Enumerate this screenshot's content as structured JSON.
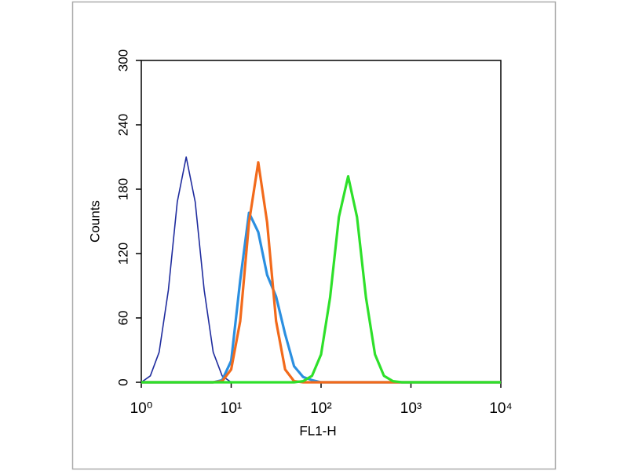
{
  "chart_data": {
    "type": "line",
    "xlabel": "FL1-H",
    "ylabel": "Counts",
    "xscale": "log",
    "x": [
      1,
      1.26,
      1.58,
      2,
      2.51,
      3.16,
      3.98,
      5.01,
      6.31,
      7.94,
      10,
      12.6,
      15.8,
      20,
      25.1,
      31.6,
      39.8,
      50.1,
      63.1,
      79.4,
      100,
      126,
      158,
      200,
      251,
      316,
      398,
      501,
      631,
      794,
      1000,
      1260,
      1580,
      2000,
      2510,
      3160,
      3980,
      5010,
      6310,
      7940,
      10000
    ],
    "series": [
      {
        "color": "#1f2c9e",
        "values": [
          0,
          6,
          28,
          86,
          168,
          210,
          168,
          86,
          28,
          6,
          0,
          0,
          0,
          0,
          0,
          0,
          0,
          0,
          0,
          0,
          0,
          0,
          0,
          0,
          0,
          0,
          0,
          0,
          0,
          0,
          0,
          0,
          0,
          0,
          0,
          0,
          0,
          0,
          0,
          0,
          0
        ]
      },
      {
        "color": "#2b8fe0",
        "values": [
          0,
          0,
          0,
          0,
          0,
          0,
          0,
          0,
          0,
          2,
          20,
          95,
          158,
          140,
          100,
          80,
          45,
          15,
          5,
          2,
          0,
          0,
          0,
          0,
          0,
          0,
          0,
          0,
          0,
          0,
          0,
          0,
          0,
          0,
          0,
          0,
          0,
          0,
          0,
          0,
          0
        ]
      },
      {
        "color": "#f26a1b",
        "values": [
          0,
          0,
          0,
          0,
          0,
          0,
          0,
          0,
          0,
          1,
          12,
          57,
          149,
          205,
          149,
          57,
          12,
          1,
          0,
          0,
          0,
          0,
          0,
          0,
          0,
          0,
          0,
          0,
          0,
          0,
          0,
          0,
          0,
          0,
          0,
          0,
          0,
          0,
          0,
          0,
          0
        ]
      },
      {
        "color": "#2ee02a",
        "values": [
          0,
          0,
          0,
          0,
          0,
          0,
          0,
          0,
          0,
          0,
          0,
          0,
          0,
          0,
          0,
          0,
          0,
          0,
          1,
          6,
          26,
          79,
          154,
          192,
          154,
          79,
          26,
          6,
          1,
          0,
          0,
          0,
          0,
          0,
          0,
          0,
          0,
          0,
          0,
          0,
          0
        ]
      }
    ],
    "xlim": [
      1,
      10000
    ],
    "xticks": [
      {
        "value": 1,
        "label": "10⁰"
      },
      {
        "value": 10,
        "label": "10¹"
      },
      {
        "value": 100,
        "label": "10²"
      },
      {
        "value": 1000,
        "label": "10³"
      },
      {
        "value": 10000,
        "label": "10⁴"
      }
    ],
    "ylim": [
      0,
      300
    ],
    "yticks": [
      0,
      60,
      120,
      180,
      240,
      300
    ]
  }
}
